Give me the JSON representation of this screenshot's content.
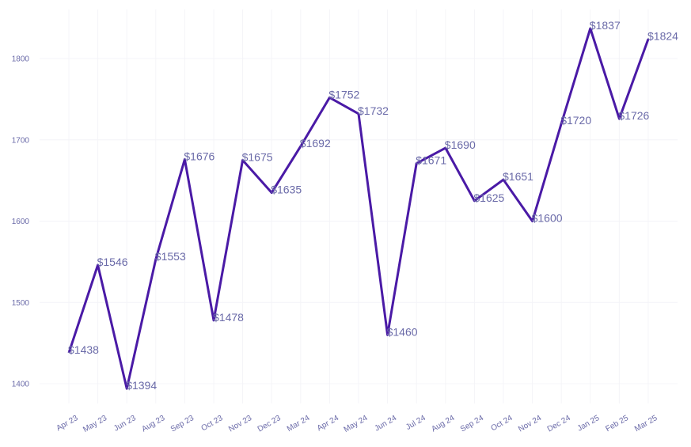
{
  "chart_data": {
    "type": "line",
    "title": "",
    "xlabel": "",
    "ylabel": "",
    "categories": [
      "Apr 23",
      "May 23",
      "Jun 23",
      "Aug 23",
      "Sep 23",
      "Oct 23",
      "Nov 23",
      "Dec 23",
      "Mar 24",
      "Apr 24",
      "May 24",
      "Jun 24",
      "Jul 24",
      "Aug 24",
      "Sep 24",
      "Oct 24",
      "Nov 24",
      "Dec 24",
      "Jan 25",
      "Feb 25",
      "Mar 25"
    ],
    "values": [
      1438,
      1546,
      1394,
      1553,
      1676,
      1478,
      1675,
      1635,
      1692,
      1752,
      1732,
      1460,
      1671,
      1690,
      1625,
      1651,
      1600,
      1720,
      1837,
      1726,
      1824
    ],
    "data_labels": [
      "$1438",
      "$1546",
      "$1394",
      "$1553",
      "$1676",
      "$1478",
      "$1675",
      "$1635",
      "$1692",
      "$1752",
      "$1732",
      "$1460",
      "$1671",
      "$1690",
      "$1625",
      "$1651",
      "$1600",
      "$1720",
      "$1837",
      "$1726",
      "$1824"
    ],
    "yticks": [
      1400,
      1500,
      1600,
      1700,
      1800
    ],
    "ylim": [
      1390,
      1845
    ],
    "grid": true,
    "line_color": "#4a1aa6",
    "label_color": "#6a6aa8"
  }
}
